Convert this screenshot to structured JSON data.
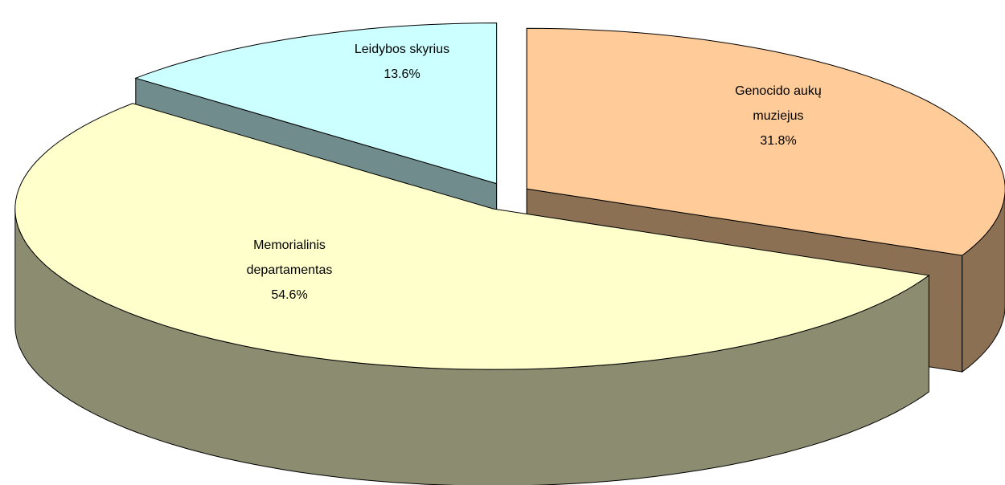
{
  "chart_data": {
    "type": "pie",
    "categories": [
      "Leidybos skyrius",
      "Genocido aukų muziejus",
      "Memorialinis departamentas"
    ],
    "values": [
      13.6,
      31.8,
      54.6
    ],
    "value_labels": [
      "13.6%",
      "31.8%",
      "54.6%"
    ],
    "colors": [
      "#ccffff",
      "#ffcc99",
      "#ffffcc"
    ]
  }
}
